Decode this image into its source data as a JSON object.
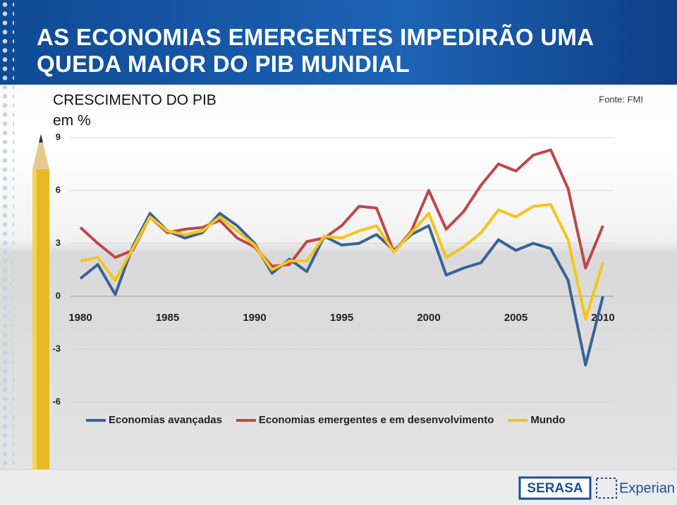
{
  "header": {
    "title": "AS ECONOMIAS EMERGENTES IMPEDIRÃO UMA\nQUEDA MAIOR DO PIB MUNDIAL"
  },
  "chart_data": {
    "type": "line",
    "title": "CRESCIMENTO DO PIB",
    "y_label": "em %",
    "source": "Fonte: FMI",
    "x": [
      1980,
      1981,
      1982,
      1983,
      1984,
      1985,
      1986,
      1987,
      1988,
      1989,
      1990,
      1991,
      1992,
      1993,
      1994,
      1995,
      1996,
      1997,
      1998,
      1999,
      2000,
      2001,
      2002,
      2003,
      2004,
      2005,
      2006,
      2007,
      2008,
      2009,
      2010
    ],
    "xlim": [
      1980,
      2010
    ],
    "xticks": [
      1980,
      1985,
      1990,
      1995,
      2000,
      2005,
      2010
    ],
    "ylim": [
      -6,
      9
    ],
    "yticks": [
      -6,
      -3,
      0,
      3,
      6,
      9
    ],
    "grid": true,
    "series": [
      {
        "name": "Economias avançadas",
        "color": "#3a6299",
        "values": [
          1.0,
          1.8,
          0.1,
          2.8,
          4.7,
          3.7,
          3.3,
          3.6,
          4.7,
          4.0,
          3.0,
          1.3,
          2.1,
          1.4,
          3.4,
          2.9,
          3.0,
          3.5,
          2.6,
          3.5,
          4.0,
          1.2,
          1.6,
          1.9,
          3.2,
          2.6,
          3.0,
          2.7,
          0.9,
          -3.9,
          0.0
        ]
      },
      {
        "name": "Economias emergentes e em desenvolvimento",
        "color": "#c0474a",
        "values": [
          3.9,
          3.0,
          2.2,
          2.6,
          4.5,
          3.6,
          3.8,
          3.9,
          4.3,
          3.3,
          2.8,
          1.7,
          1.8,
          3.1,
          3.3,
          4.0,
          5.1,
          5.0,
          2.5,
          3.7,
          6.0,
          3.8,
          4.8,
          6.3,
          7.5,
          7.1,
          8.0,
          8.3,
          6.1,
          1.6,
          4.0
        ]
      },
      {
        "name": "Mundo",
        "color": "#f5c518",
        "values": [
          2.0,
          2.2,
          0.9,
          2.7,
          4.5,
          3.7,
          3.5,
          3.7,
          4.5,
          3.7,
          2.9,
          1.5,
          2.0,
          2.0,
          3.4,
          3.3,
          3.7,
          4.0,
          2.5,
          3.6,
          4.7,
          2.2,
          2.8,
          3.6,
          4.9,
          4.5,
          5.1,
          5.2,
          3.2,
          -1.3,
          1.9
        ]
      }
    ],
    "legend": "bottom"
  },
  "footer": {
    "logos": [
      "SERASA",
      "Experian"
    ]
  }
}
